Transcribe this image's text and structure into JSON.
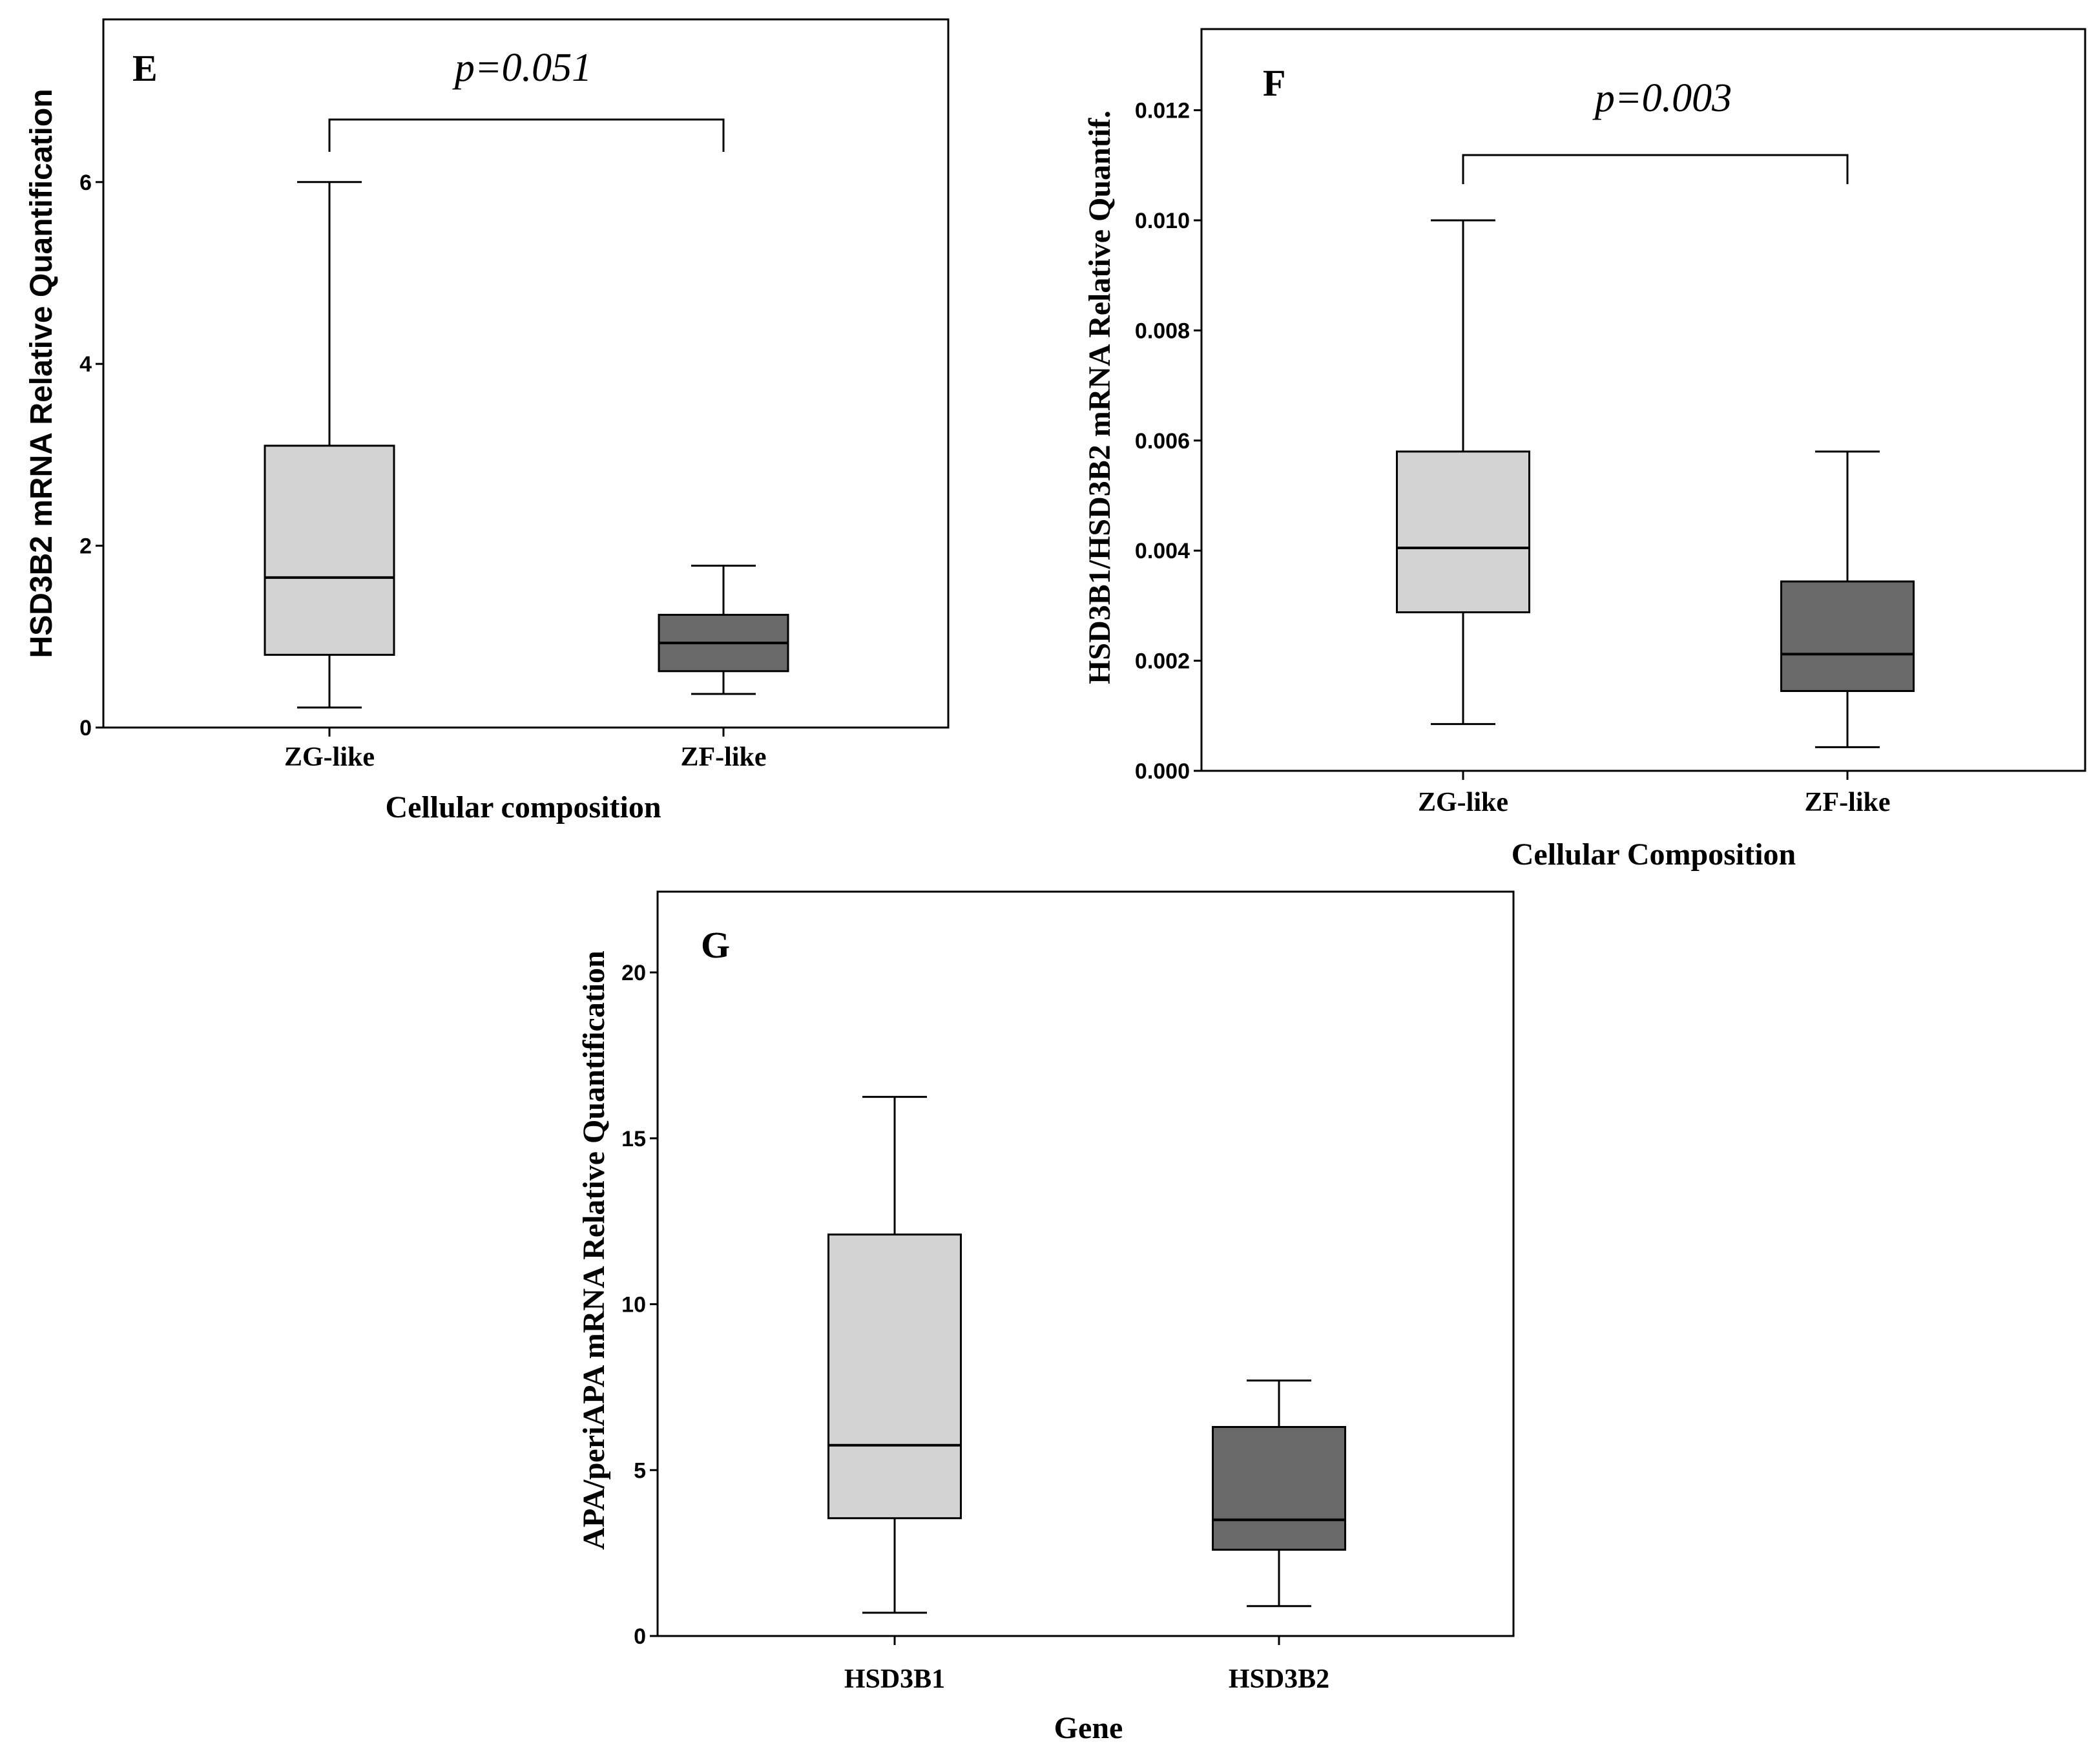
{
  "chart_data": [
    {
      "panel": "E",
      "type": "box",
      "ylabel": "HSD3B2 mRNA Relative Quantification",
      "xlabel": "Cellular composition",
      "ylim": [
        0,
        7.8
      ],
      "yticks": [
        "0",
        "2",
        "4",
        "6"
      ],
      "ytick_values": [
        0,
        2,
        4,
        6
      ],
      "categories": [
        "ZG-like",
        "ZF-like"
      ],
      "boxes": [
        {
          "category": "ZG-like",
          "min": 0.22,
          "q1": 0.8,
          "median": 1.65,
          "q3": 3.1,
          "max": 6.0,
          "color": "#d3d3d3"
        },
        {
          "category": "ZF-like",
          "min": 0.37,
          "q1": 0.62,
          "median": 0.93,
          "q3": 1.24,
          "max": 1.78,
          "color": "#696969"
        }
      ],
      "annotation": {
        "text": "p=0.051",
        "bracket_y": 6.7
      }
    },
    {
      "panel": "F",
      "type": "box",
      "ylabel": "HSD3B1/HSD3B2 mRNA Relative Quantif.",
      "xlabel": "Cellular Composition",
      "ylim": [
        0,
        0.0134
      ],
      "yticks": [
        "0.000",
        "0.002",
        "0.004",
        "0.006",
        "0.008",
        "0.010",
        "0.012"
      ],
      "ytick_values": [
        0,
        0.002,
        0.004,
        0.006,
        0.008,
        0.01,
        0.012
      ],
      "categories": [
        "ZG-like",
        "ZF-like"
      ],
      "boxes": [
        {
          "category": "ZG-like",
          "min": 0.00085,
          "q1": 0.00288,
          "median": 0.00405,
          "q3": 0.0058,
          "max": 0.01,
          "color": "#d3d3d3"
        },
        {
          "category": "ZF-like",
          "min": 0.00043,
          "q1": 0.00145,
          "median": 0.00212,
          "q3": 0.00344,
          "max": 0.0058,
          "color": "#696969"
        }
      ],
      "annotation": {
        "text": "p=0.003",
        "bracket_y": 0.0111
      }
    },
    {
      "panel": "G",
      "type": "box",
      "ylabel": "APA/periAPA mRNA Relative Quantification",
      "xlabel": "Gene",
      "ylim": [
        0,
        22.2
      ],
      "yticks": [
        "0",
        "5",
        "10",
        "15",
        "20"
      ],
      "ytick_values": [
        0,
        5,
        10,
        15,
        20
      ],
      "categories": [
        "HSD3B1",
        "HSD3B2"
      ],
      "boxes": [
        {
          "category": "HSD3B1",
          "min": 0.7,
          "q1": 3.55,
          "median": 5.75,
          "q3": 12.1,
          "max": 16.25,
          "color": "#d3d3d3"
        },
        {
          "category": "HSD3B2",
          "min": 0.9,
          "q1": 2.6,
          "median": 3.5,
          "q3": 6.3,
          "max": 7.7,
          "color": "#696969"
        }
      ]
    }
  ]
}
